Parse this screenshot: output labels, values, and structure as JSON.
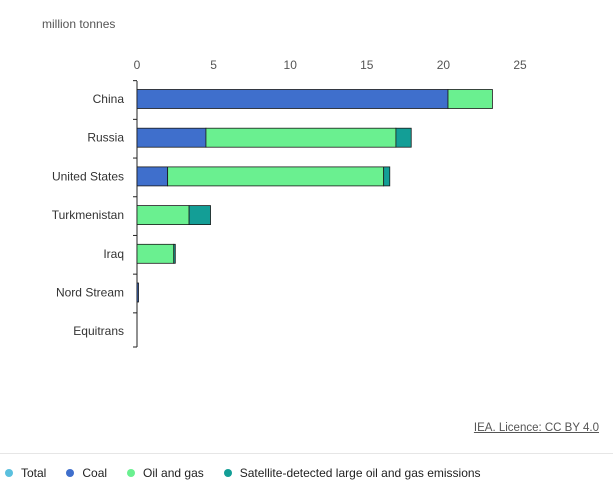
{
  "unit_label": "million tonnes",
  "source": "IEA. Licence: CC BY 4.0",
  "legend": [
    {
      "label": "Total",
      "color": "#5bc0de"
    },
    {
      "label": "Coal",
      "color": "#3f6fcc"
    },
    {
      "label": "Oil and gas",
      "color": "#6af090"
    },
    {
      "label": "Satellite-detected large oil and gas emissions",
      "color": "#139e96"
    }
  ],
  "chart_data": {
    "type": "bar",
    "orientation": "horizontal",
    "stacked": true,
    "categories": [
      "China",
      "Russia",
      "United States",
      "Turkmenistan",
      "Iraq",
      "Nord Stream",
      "Equitrans"
    ],
    "series": [
      {
        "name": "Coal",
        "color": "#3f6fcc",
        "values": [
          20.3,
          4.5,
          2.0,
          0,
          0,
          0.1,
          0
        ]
      },
      {
        "name": "Oil and gas",
        "color": "#6af090",
        "values": [
          2.9,
          12.4,
          14.1,
          3.4,
          2.4,
          0,
          0
        ]
      },
      {
        "name": "Satellite-detected large oil and gas emissions",
        "color": "#139e96",
        "values": [
          0,
          1.0,
          0.4,
          1.4,
          0.1,
          0,
          0
        ]
      }
    ],
    "xticks": [
      0,
      5,
      10,
      15,
      20,
      25
    ],
    "xlim": [
      0,
      25
    ],
    "xlabel": "million tonnes",
    "grid": false,
    "legend_position": "bottom"
  }
}
